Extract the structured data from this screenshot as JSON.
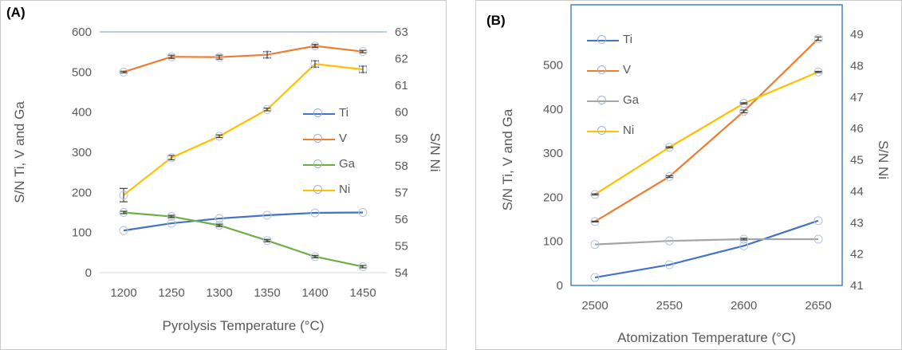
{
  "chart_data": [
    {
      "panel": "(A)",
      "type": "line",
      "xlabel": "Pyrolysis Temperature (°C)",
      "ylabel_left": "S/N Ti, V and Ga",
      "ylabel_right": "S/N Ni",
      "categories": [
        "1200",
        "1250",
        "1300",
        "1350",
        "1400",
        "1450"
      ],
      "ylim_left": [
        0,
        600
      ],
      "yticks_left": [
        "0",
        "100",
        "200",
        "300",
        "400",
        "500",
        "600"
      ],
      "ylim_right": [
        54,
        63
      ],
      "yticks_right": [
        "54",
        "55",
        "56",
        "57",
        "58",
        "59",
        "60",
        "61",
        "62",
        "63"
      ],
      "legend_placement": "center-right",
      "series": [
        {
          "name": "Ti",
          "axis": "left",
          "color": "#4472c4",
          "values": [
            105,
            123,
            135,
            143,
            149,
            150
          ],
          "errors": [
            0,
            0,
            0,
            0,
            0,
            0
          ]
        },
        {
          "name": "V",
          "axis": "left",
          "color": "#ed7d31",
          "values": [
            500,
            538,
            537,
            543,
            565,
            551
          ],
          "errors": [
            2,
            4,
            5,
            8,
            4,
            3
          ]
        },
        {
          "name": "Ga",
          "axis": "left",
          "color": "#70ad47",
          "values": [
            150,
            140,
            118,
            80,
            40,
            15
          ],
          "errors": [
            3,
            3,
            3,
            3,
            3,
            3
          ]
        },
        {
          "name": "Ni",
          "axis": "right",
          "color": "#ffc000",
          "values": [
            56.9,
            58.3,
            59.1,
            60.1,
            61.8,
            61.6
          ],
          "errors": [
            0.25,
            0.08,
            0.05,
            0.05,
            0.12,
            0.12
          ]
        }
      ]
    },
    {
      "panel": "(B)",
      "type": "line",
      "xlabel": "Atomization Temperature (°C)",
      "ylabel_left": "S/N Ti, V and Ga",
      "ylabel_right": "S/N Ni",
      "categories": [
        "2500",
        "2550",
        "2600",
        "2650"
      ],
      "ylim_left": [
        0,
        570
      ],
      "yticks_left": [
        "0",
        "100",
        "200",
        "300",
        "400",
        "500"
      ],
      "ylim_right": [
        41,
        49
      ],
      "yticks_right": [
        "41",
        "42",
        "43",
        "44",
        "45",
        "46",
        "47",
        "48",
        "49"
      ],
      "legend_placement": "top-left",
      "series": [
        {
          "name": "Ti",
          "axis": "left",
          "color": "#4472c4",
          "values": [
            18,
            47,
            90,
            147
          ],
          "errors": [
            0,
            0,
            0,
            0
          ]
        },
        {
          "name": "V",
          "axis": "left",
          "color": "#ed7d31",
          "values": [
            145,
            247,
            395,
            560
          ],
          "errors": [
            1,
            2,
            3,
            4
          ]
        },
        {
          "name": "Ga",
          "axis": "left",
          "color": "#a5a5a5",
          "values": [
            93,
            101,
            105,
            105
          ],
          "errors": [
            0,
            0,
            2,
            0
          ]
        },
        {
          "name": "Ni",
          "axis": "right",
          "color": "#ffc000",
          "values": [
            43.9,
            45.4,
            46.8,
            47.8
          ],
          "errors": [
            0.02,
            0.02,
            0.02,
            0.02
          ]
        }
      ]
    }
  ]
}
